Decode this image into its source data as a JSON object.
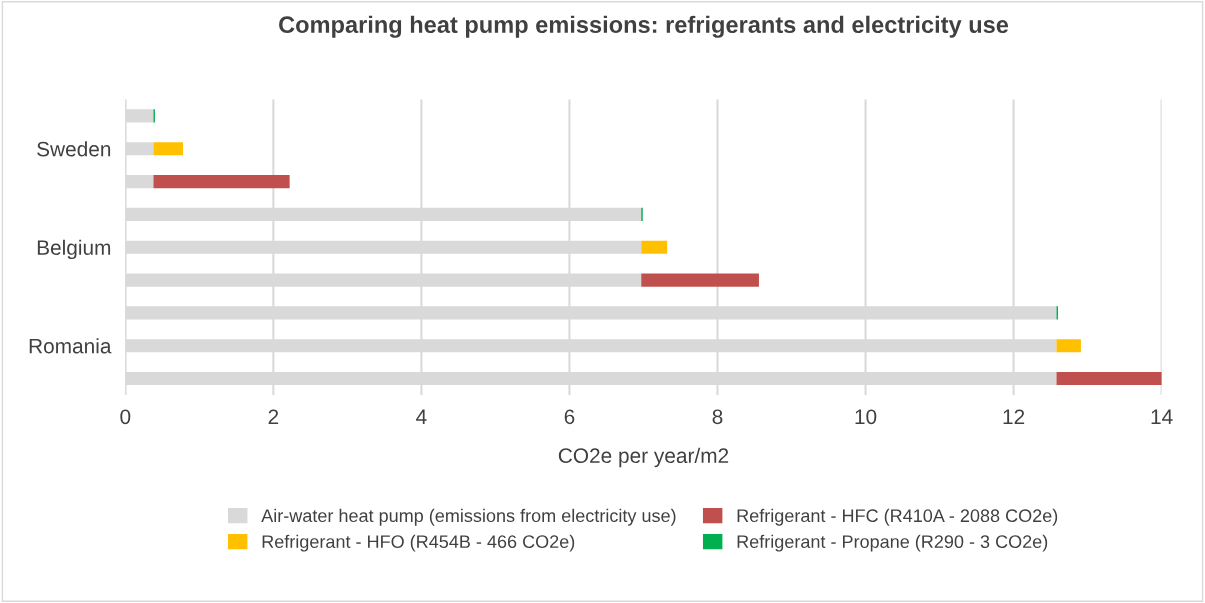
{
  "chart_data": {
    "type": "bar",
    "orientation": "horizontal",
    "stacked": true,
    "title": "Comparing heat pump emissions: refrigerants and electricity use",
    "xlabel": "CO2e per year/m2",
    "categories": [
      null,
      "Sweden",
      null,
      null,
      "Belgium",
      null,
      null,
      "Romania",
      null
    ],
    "series": [
      {
        "name": "Air-water heat pump (emissions from electricity use)",
        "color": "#d9d9d9",
        "values": [
          0.38,
          0.38,
          0.38,
          6.97,
          6.97,
          6.97,
          12.58,
          12.58,
          12.58
        ]
      },
      {
        "name": "Refrigerant - HFC (R410A - 2088 CO2e)",
        "color": "#c0504d",
        "values": [
          null,
          null,
          1.84,
          null,
          null,
          1.59,
          null,
          null,
          1.45
        ]
      },
      {
        "name": "Refrigerant - HFO (R454B - 466 CO2e)",
        "color": "#ffc000",
        "values": [
          null,
          0.4,
          null,
          null,
          0.35,
          null,
          null,
          0.33,
          null
        ]
      },
      {
        "name": "Refrigerant - Propane (R290 - 3 CO2e)",
        "color": "#00b050",
        "values": [
          0.02,
          null,
          null,
          0.02,
          null,
          null,
          0.02,
          null,
          null
        ]
      }
    ],
    "xlim": [
      0,
      14
    ],
    "xticks": [
      0,
      2,
      4,
      6,
      8,
      10,
      12,
      14
    ],
    "grid": "x",
    "legend": "bottom"
  }
}
